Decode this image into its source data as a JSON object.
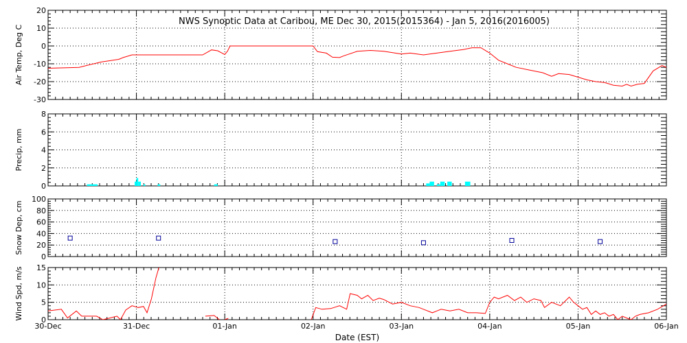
{
  "chart_data": [
    {
      "type": "line",
      "title": "NWS Synoptic Data at Caribou, ME   Dec 30, 2015(2015364) - Jan  5, 2016(2016005)",
      "ylabel": "Air Temp, Deg C",
      "xlim": [
        0,
        7
      ],
      "ylim": [
        -30,
        20
      ],
      "yticks": [
        -30,
        -20,
        -10,
        0,
        10,
        20
      ],
      "grid": true,
      "series": [
        {
          "color": "#ff0000",
          "points": [
            [
              0.0,
              -12.5
            ],
            [
              0.35,
              -12.0
            ],
            [
              0.6,
              -9.0
            ],
            [
              0.8,
              -7.5
            ],
            [
              0.85,
              -6.5
            ],
            [
              0.95,
              -5.0
            ],
            [
              1.2,
              -5.0
            ],
            [
              1.5,
              -5.0
            ],
            [
              1.75,
              -5.0
            ],
            [
              1.85,
              -2.2
            ],
            [
              1.92,
              -2.7
            ],
            [
              1.97,
              -4.0
            ],
            [
              2.0,
              -4.8
            ],
            [
              2.03,
              -3.0
            ],
            [
              2.06,
              0.0
            ],
            [
              2.5,
              0.0
            ],
            [
              3.0,
              0.0
            ],
            [
              3.05,
              -3.2
            ],
            [
              3.15,
              -4.0
            ],
            [
              3.22,
              -6.3
            ],
            [
              3.3,
              -6.5
            ],
            [
              3.35,
              -5.5
            ],
            [
              3.5,
              -3.0
            ],
            [
              3.65,
              -2.5
            ],
            [
              3.8,
              -3.0
            ],
            [
              4.0,
              -4.5
            ],
            [
              4.1,
              -4.0
            ],
            [
              4.25,
              -5.0
            ],
            [
              4.4,
              -4.0
            ],
            [
              4.55,
              -3.0
            ],
            [
              4.7,
              -2.0
            ],
            [
              4.8,
              -1.0
            ],
            [
              4.9,
              -1.0
            ],
            [
              5.0,
              -4.0
            ],
            [
              5.1,
              -8.0
            ],
            [
              5.2,
              -10.0
            ],
            [
              5.3,
              -12.0
            ],
            [
              5.45,
              -13.5
            ],
            [
              5.6,
              -15.0
            ],
            [
              5.7,
              -17.0
            ],
            [
              5.78,
              -15.5
            ],
            [
              5.9,
              -16.0
            ],
            [
              6.0,
              -17.5
            ],
            [
              6.1,
              -19.0
            ],
            [
              6.2,
              -20.0
            ],
            [
              6.3,
              -20.5
            ],
            [
              6.4,
              -22.0
            ],
            [
              6.5,
              -22.5
            ],
            [
              6.55,
              -21.5
            ],
            [
              6.6,
              -22.5
            ],
            [
              6.67,
              -21.5
            ],
            [
              6.75,
              -21.0
            ],
            [
              6.85,
              -14.0
            ],
            [
              6.95,
              -11.0
            ],
            [
              7.0,
              -12.0
            ]
          ]
        }
      ]
    },
    {
      "type": "bar",
      "ylabel": "Precip, mm",
      "xlim": [
        0,
        7
      ],
      "ylim": [
        0,
        8
      ],
      "yticks": [
        0,
        2,
        4,
        6,
        8
      ],
      "grid": true,
      "bars": [
        {
          "x": 0.44,
          "w": 0.12,
          "value": 0.1
        },
        {
          "x": 0.98,
          "w": 0.02,
          "value": 0.4
        },
        {
          "x": 1.0,
          "w": 0.02,
          "value": 0.8
        },
        {
          "x": 1.02,
          "w": 0.03,
          "value": 0.4
        },
        {
          "x": 1.08,
          "w": 0.02,
          "value": 0.1
        },
        {
          "x": 1.24,
          "w": 0.03,
          "value": 0.1
        },
        {
          "x": 1.88,
          "w": 0.04,
          "value": 0.1
        },
        {
          "x": 4.28,
          "w": 0.04,
          "value": 0.2
        },
        {
          "x": 4.32,
          "w": 0.05,
          "value": 0.4
        },
        {
          "x": 4.4,
          "w": 0.04,
          "value": 0.1
        },
        {
          "x": 4.44,
          "w": 0.05,
          "value": 0.4
        },
        {
          "x": 4.52,
          "w": 0.05,
          "value": 0.4
        },
        {
          "x": 4.72,
          "w": 0.06,
          "value": 0.4
        }
      ],
      "color": "#00ffff"
    },
    {
      "type": "scatter",
      "ylabel": "Snow Dep, cm",
      "xlim": [
        0,
        7
      ],
      "ylim": [
        0,
        100
      ],
      "yticks": [
        0,
        20,
        40,
        60,
        80,
        100
      ],
      "grid": true,
      "points": [
        [
          0.25,
          32
        ],
        [
          1.25,
          32
        ],
        [
          3.25,
          26
        ],
        [
          4.25,
          24
        ],
        [
          5.25,
          28
        ],
        [
          6.25,
          26
        ]
      ],
      "color": "#000099"
    },
    {
      "type": "line",
      "ylabel": "Wind Spd, m/s",
      "xlabel": "Date (EST)",
      "xlim": [
        0,
        7
      ],
      "ylim": [
        0,
        15
      ],
      "yticks": [
        0,
        5,
        10,
        15
      ],
      "xtick_labels": [
        "30-Dec",
        "31-Dec",
        "01-Jan",
        "02-Jan",
        "03-Jan",
        "04-Jan",
        "05-Jan",
        "06-Jan"
      ],
      "grid": true,
      "series": [
        {
          "color": "#ff0000",
          "segments": [
            [
              [
                0.0,
                2.5
              ],
              [
                0.15,
                3.0
              ],
              [
                0.22,
                0.5
              ],
              [
                0.32,
                2.5
              ],
              [
                0.38,
                1.0
              ],
              [
                0.55,
                1.0
              ],
              [
                0.62,
                0.0
              ],
              [
                0.7,
                0.5
              ],
              [
                0.78,
                1.0
              ],
              [
                0.82,
                0.0
              ],
              [
                0.88,
                2.8
              ],
              [
                0.95,
                4.0
              ],
              [
                1.02,
                3.5
              ],
              [
                1.08,
                3.8
              ],
              [
                1.12,
                2.0
              ],
              [
                1.17,
                6.0
              ],
              [
                1.22,
                12.0
              ],
              [
                1.26,
                15.5
              ]
            ],
            [
              [
                1.78,
                1.0
              ],
              [
                1.88,
                1.2
              ],
              [
                1.94,
                0.0
              ]
            ],
            [
              [
                2.0,
                0.0
              ],
              [
                2.04,
                0.4
              ]
            ],
            [
              [
                2.98,
                0.0
              ],
              [
                3.03,
                3.5
              ],
              [
                3.1,
                3.0
              ],
              [
                3.2,
                3.2
              ],
              [
                3.3,
                4.0
              ],
              [
                3.38,
                3.0
              ],
              [
                3.42,
                7.5
              ],
              [
                3.5,
                7.0
              ],
              [
                3.55,
                6.0
              ],
              [
                3.62,
                7.0
              ],
              [
                3.68,
                5.5
              ],
              [
                3.75,
                6.2
              ],
              [
                3.8,
                5.8
              ],
              [
                3.9,
                4.5
              ],
              [
                4.0,
                5.0
              ],
              [
                4.1,
                4.0
              ],
              [
                4.2,
                3.5
              ],
              [
                4.25,
                3.0
              ],
              [
                4.35,
                2.0
              ],
              [
                4.45,
                3.0
              ],
              [
                4.55,
                2.5
              ],
              [
                4.65,
                3.0
              ],
              [
                4.75,
                2.0
              ],
              [
                4.85,
                2.0
              ],
              [
                4.95,
                1.8
              ],
              [
                5.0,
                5.0
              ],
              [
                5.05,
                6.5
              ],
              [
                5.1,
                6.0
              ],
              [
                5.2,
                7.0
              ],
              [
                5.28,
                5.5
              ],
              [
                5.35,
                6.5
              ],
              [
                5.42,
                5.0
              ],
              [
                5.5,
                6.0
              ],
              [
                5.58,
                5.5
              ],
              [
                5.62,
                3.5
              ],
              [
                5.7,
                5.0
              ],
              [
                5.8,
                4.0
              ],
              [
                5.9,
                6.5
              ],
              [
                5.95,
                5.0
              ],
              [
                6.0,
                4.0
              ],
              [
                6.05,
                3.0
              ],
              [
                6.1,
                3.5
              ],
              [
                6.15,
                1.5
              ],
              [
                6.2,
                2.5
              ],
              [
                6.25,
                1.5
              ],
              [
                6.3,
                2.0
              ],
              [
                6.35,
                1.0
              ],
              [
                6.4,
                1.5
              ],
              [
                6.45,
                0.0
              ],
              [
                6.5,
                1.0
              ],
              [
                6.55,
                0.5
              ],
              [
                6.6,
                0.0
              ],
              [
                6.65,
                1.0
              ],
              [
                6.7,
                1.5
              ],
              [
                6.8,
                2.0
              ],
              [
                6.9,
                3.0
              ],
              [
                7.0,
                4.5
              ]
            ]
          ]
        }
      ]
    }
  ]
}
